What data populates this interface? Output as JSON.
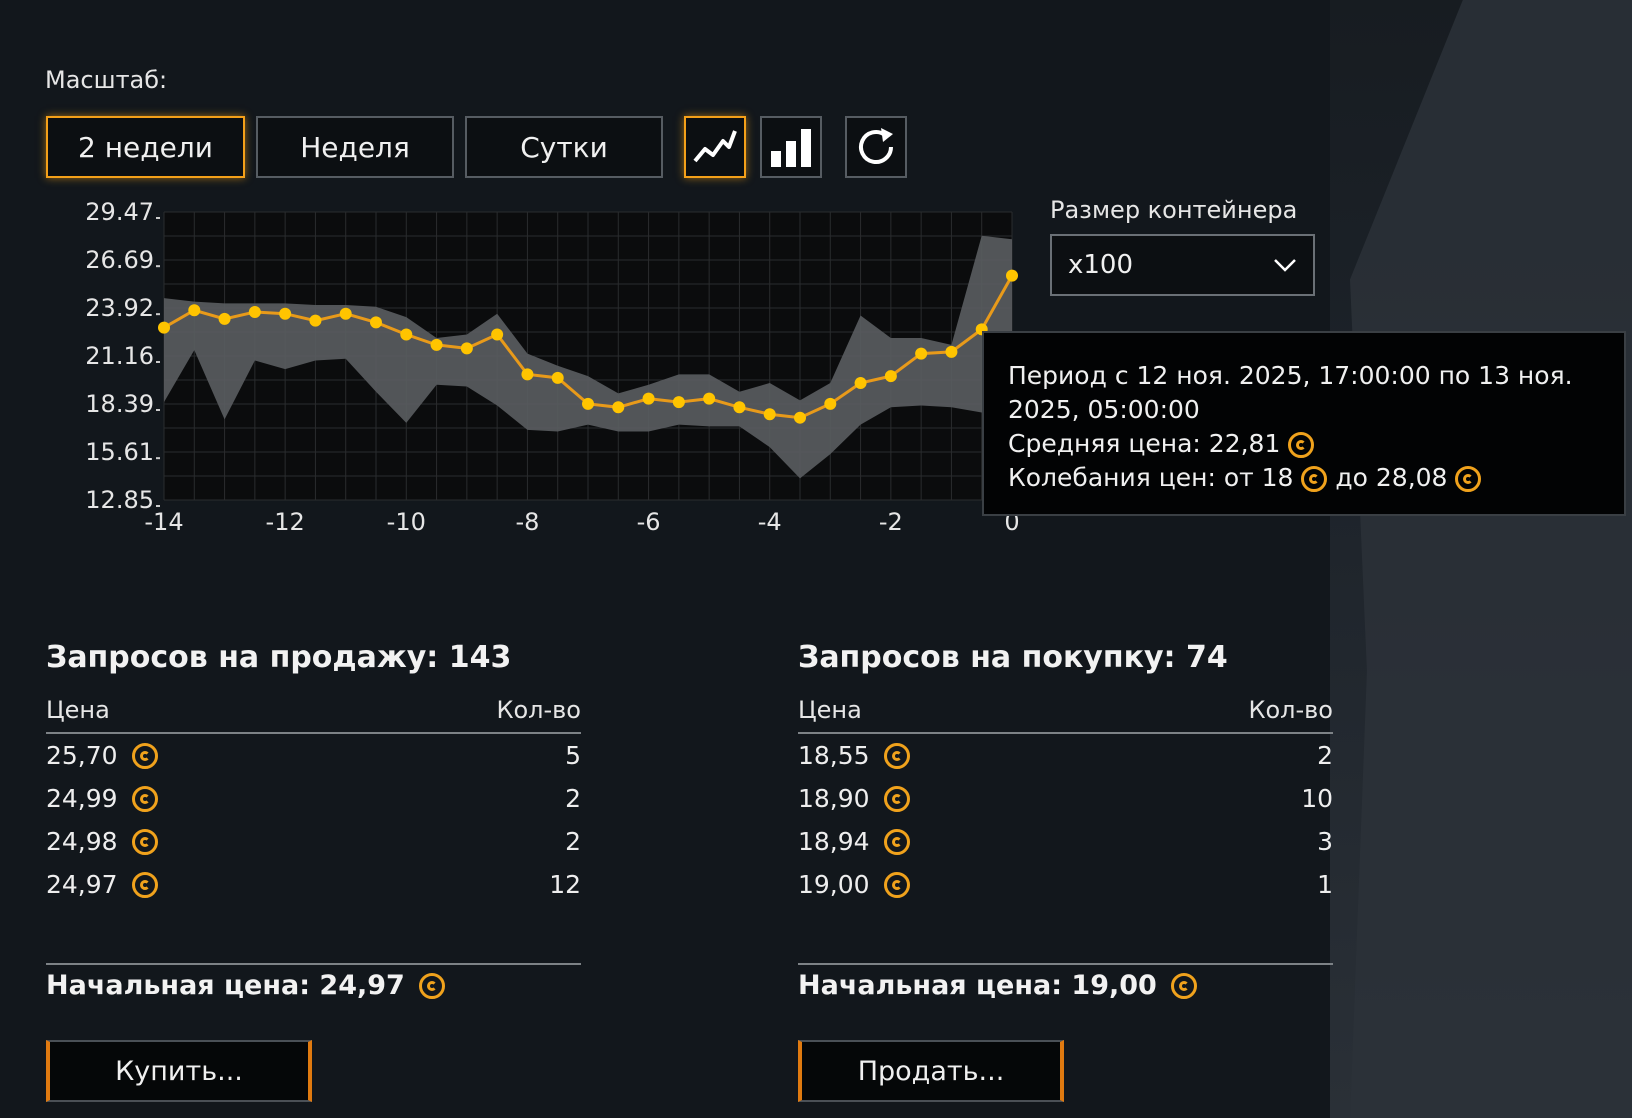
{
  "scale": {
    "label": "Масштаб:",
    "buttons": [
      "2 недели",
      "Неделя",
      "Сутки"
    ],
    "active": "2 недели"
  },
  "view_controls": [
    {
      "icon": "line-chart-icon",
      "active": true
    },
    {
      "icon": "bar-chart-icon",
      "active": false
    },
    {
      "icon": "refresh-icon",
      "active": false
    }
  ],
  "container": {
    "label": "Размер контейнера",
    "value": "x100"
  },
  "tooltip": {
    "line1": "Период с 12 ноя. 2025, 17:00:00 по 13 ноя. 2025, 05:00:00",
    "line2": "Средняя цена: 22,81",
    "line3_a": "Колебания цен: от 18",
    "line3_b": "до 28,08"
  },
  "sell": {
    "title": "Запросов на продажу: 143",
    "col_price": "Цена",
    "col_qty": "Кол-во",
    "rows": [
      {
        "price": "25,70",
        "qty": "5"
      },
      {
        "price": "24,99",
        "qty": "2"
      },
      {
        "price": "24,98",
        "qty": "2"
      },
      {
        "price": "24,97",
        "qty": "12"
      }
    ],
    "start_price": "Начальная цена: 24,97",
    "button": "Купить..."
  },
  "buy": {
    "title": "Запросов на покупку: 74",
    "col_price": "Цена",
    "col_qty": "Кол-во",
    "rows": [
      {
        "price": "18,55",
        "qty": "2"
      },
      {
        "price": "18,90",
        "qty": "10"
      },
      {
        "price": "18,94",
        "qty": "3"
      },
      {
        "price": "19,00",
        "qty": "1"
      }
    ],
    "start_price": "Начальная цена: 19,00",
    "button": "Продать..."
  },
  "colors": {
    "accent": "#f4a019",
    "line": "#e89a1a",
    "point": "#ffc400",
    "band": "#5a5d60",
    "plot_bg": "#0b0c0d"
  },
  "chart_data": {
    "type": "line",
    "y_ticks": [
      "29.47",
      "26.69",
      "23.92",
      "21.16",
      "18.39",
      "15.61",
      "12.85"
    ],
    "x_ticks": [
      "-14",
      "-12",
      "-10",
      "-8",
      "-6",
      "-4",
      "-2",
      "0"
    ],
    "ylim": [
      12.85,
      29.47
    ],
    "xlim": [
      -14,
      0
    ],
    "grid": true,
    "x": [
      -14,
      -13.5,
      -13,
      -12.5,
      -12,
      -11.5,
      -11,
      -10.5,
      -10,
      -9.5,
      -9,
      -8.5,
      -8,
      -7.5,
      -7,
      -6.5,
      -6,
      -5.5,
      -5,
      -4.5,
      -4,
      -3.5,
      -3,
      -2.5,
      -2,
      -1.5,
      -1,
      -0.5,
      0
    ],
    "series": [
      {
        "values": [
          22.8,
          23.8,
          23.3,
          23.7,
          23.6,
          23.2,
          23.6,
          23.1,
          22.4,
          21.8,
          21.6,
          22.4,
          20.1,
          19.9,
          18.4,
          18.2,
          18.7,
          18.5,
          18.7,
          18.2,
          17.8,
          17.6,
          18.4,
          19.6,
          20.0,
          21.3,
          21.4,
          22.7,
          25.8
        ]
      }
    ],
    "range_high": [
      24.5,
      24.3,
      24.2,
      24.2,
      24.2,
      24.1,
      24.1,
      24.0,
      23.4,
      22.2,
      22.4,
      23.6,
      21.3,
      20.6,
      20.0,
      19.0,
      19.5,
      20.1,
      20.1,
      19.1,
      19.6,
      18.6,
      19.6,
      23.5,
      22.2,
      22.2,
      21.8,
      28.1,
      27.9
    ],
    "range_low": [
      18.5,
      21.5,
      17.5,
      20.9,
      20.4,
      20.9,
      21.0,
      19.1,
      17.3,
      19.5,
      19.4,
      18.3,
      16.9,
      16.8,
      17.2,
      16.8,
      16.8,
      17.2,
      17.1,
      17.1,
      15.9,
      14.1,
      15.5,
      17.2,
      18.2,
      18.3,
      18.2,
      17.9,
      19.1
    ]
  }
}
